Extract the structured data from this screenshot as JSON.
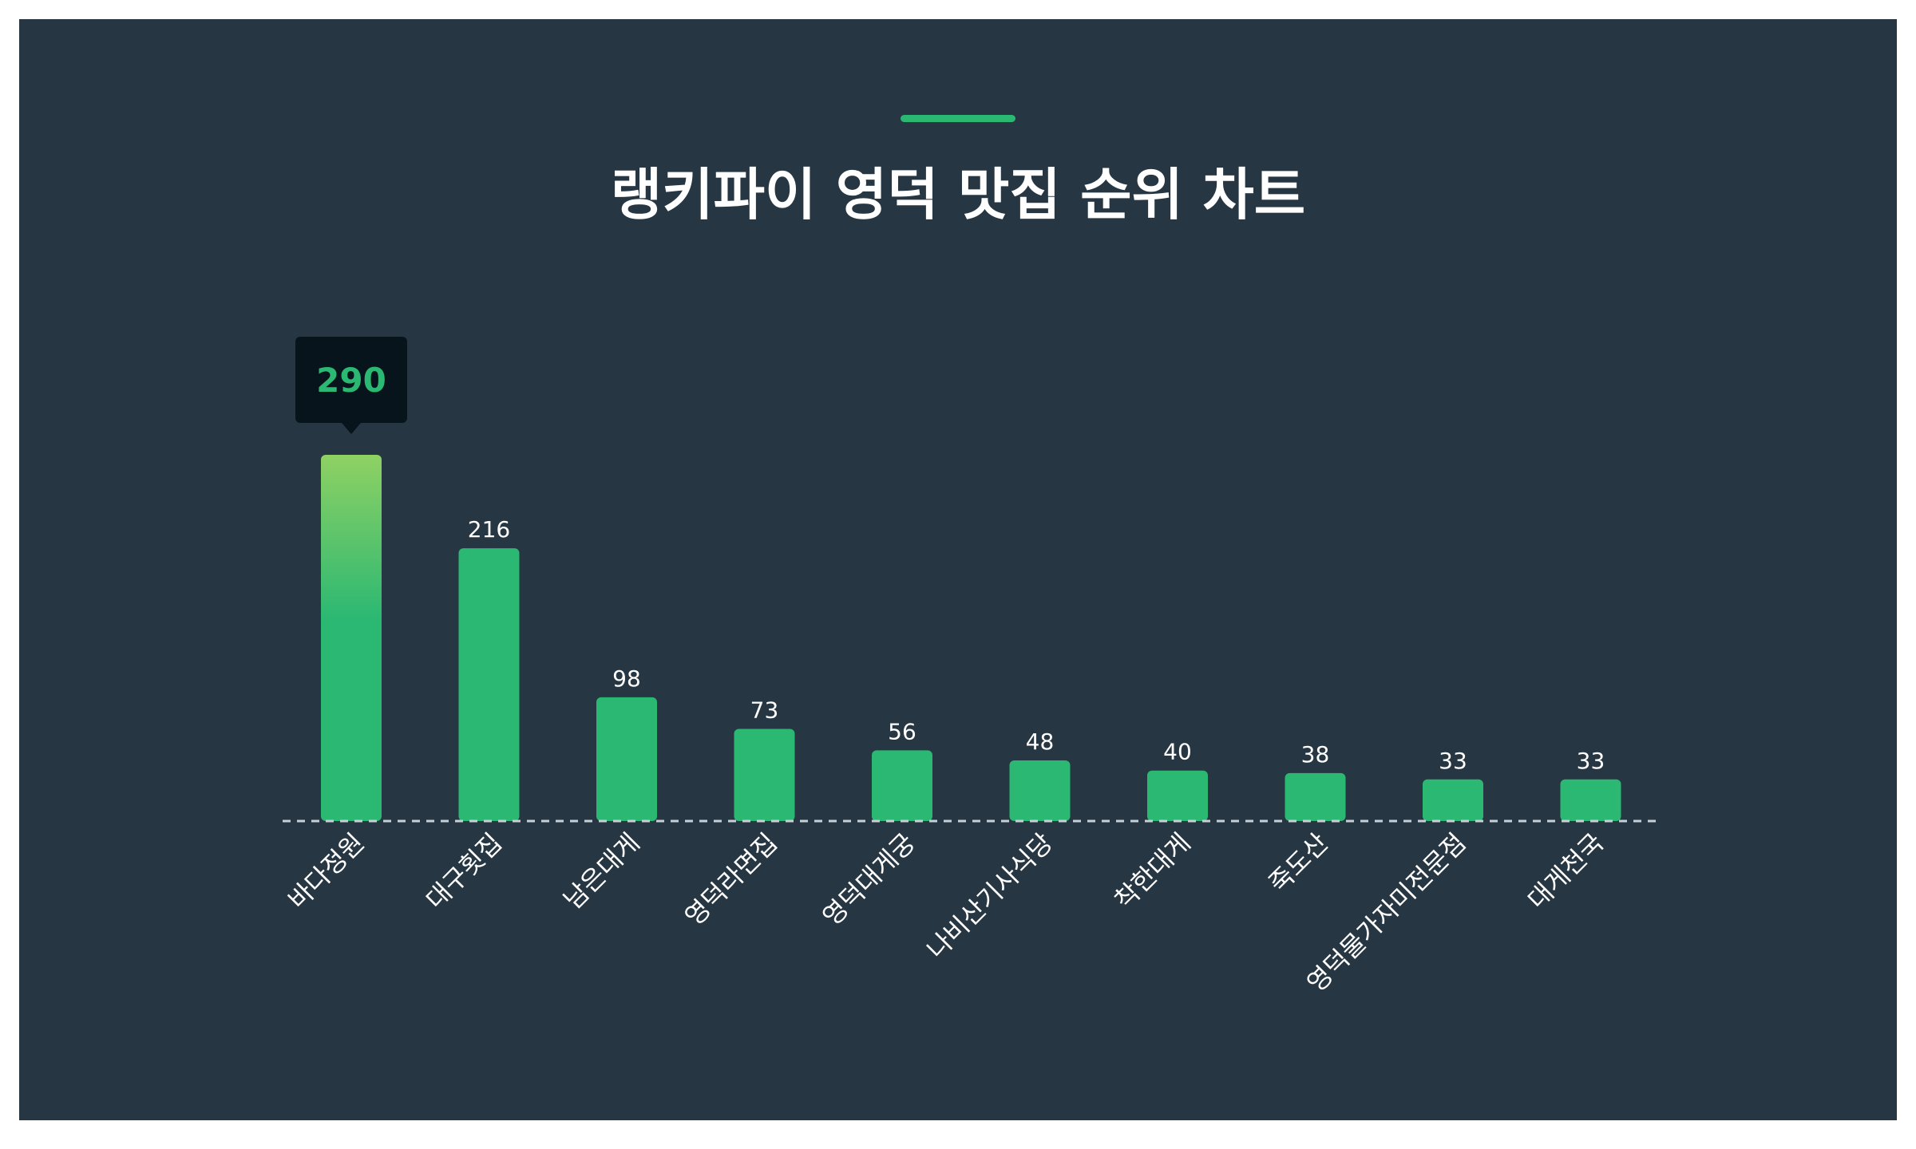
{
  "chart_data": {
    "type": "bar",
    "title": "랭키파이 영덕 맛집 순위 차트",
    "categories": [
      "바다정원",
      "대구횟집",
      "남은대게",
      "영덕라면집",
      "영덕대게궁",
      "나비산기사식당",
      "착한대게",
      "죽도산",
      "영덕물가자미전문점",
      "대게천국"
    ],
    "values": [
      290,
      216,
      98,
      73,
      56,
      48,
      40,
      38,
      33,
      33
    ],
    "highlight_index": 0,
    "xlabel": "",
    "ylabel": "",
    "ylim": [
      0,
      290
    ],
    "grid": false,
    "legend": "none"
  },
  "colors": {
    "background": "#263642",
    "bar": "#2bb873",
    "highlight_top": "#8fd163",
    "tooltip_bg": "#07141c",
    "text": "#ffffff",
    "baseline": "#c8d0d6"
  }
}
